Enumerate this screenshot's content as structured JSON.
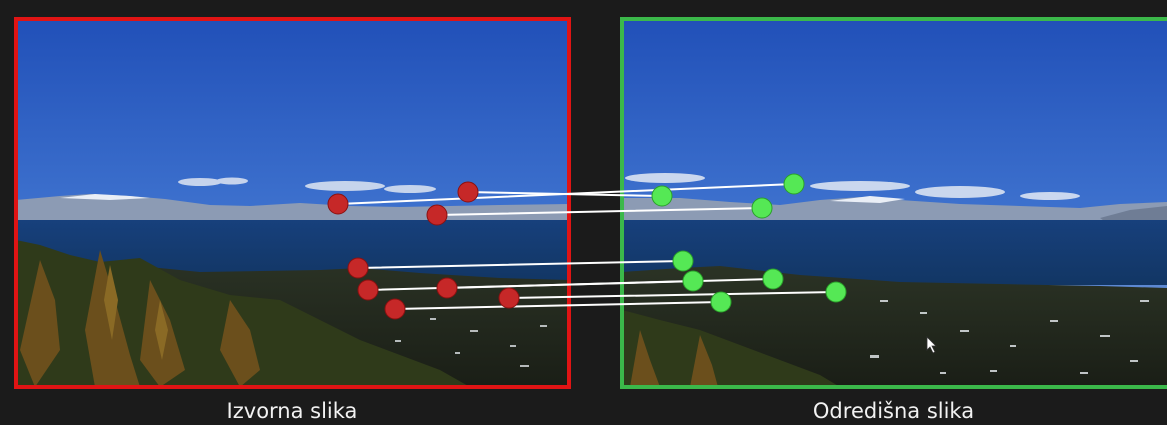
{
  "captions": {
    "source": "Izvorna slika",
    "destination": "Odredišna slika"
  },
  "colors": {
    "background": "#1b1b1b",
    "source_frame": "#e01414",
    "destination_frame": "#3bb84a",
    "source_point": "#c62828",
    "destination_point": "#55e855",
    "match_line": "#ffffff"
  },
  "match_count": 8
}
